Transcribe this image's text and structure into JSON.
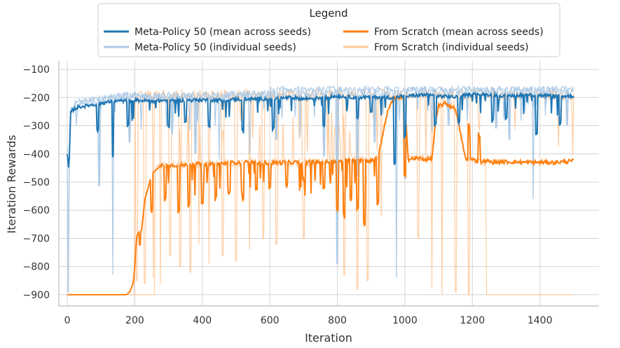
{
  "chart_data": {
    "type": "line",
    "title": "",
    "xlabel": "Iteration",
    "ylabel": "Iteration Rewards",
    "xlim": [
      -25,
      1575
    ],
    "ylim": [
      -940,
      -70
    ],
    "xticks": [
      0,
      200,
      400,
      600,
      800,
      1000,
      1200,
      1400
    ],
    "yticks": [
      -900,
      -800,
      -700,
      -600,
      -500,
      -400,
      -300,
      -200,
      -100
    ],
    "grid": true,
    "legend": {
      "title": "Legend",
      "placement": "top-center",
      "entries": [
        "Meta-Policy 50 (mean across seeds)",
        "From Scratch (mean across seeds)",
        "Meta-Policy 50 (individual seeds)",
        "From Scratch (individual seeds)"
      ]
    },
    "colors": {
      "meta": "#1f77b4",
      "meta_light": "#aac8e3",
      "scratch": "#ff7f0e",
      "scratch_light": "#ffc898",
      "grid": "#d4d4d4",
      "axis": "#bbbbbb"
    },
    "series": [
      {
        "name": "Meta-Policy 50 (mean across seeds)",
        "x": [
          0,
          5,
          10,
          30,
          60,
          80,
          100,
          130,
          160,
          200,
          260,
          300,
          350,
          400,
          460,
          500,
          560,
          600,
          660,
          700,
          760,
          800,
          860,
          900,
          960,
          1000,
          1060,
          1100,
          1150,
          1200,
          1260,
          1300,
          1350,
          1400,
          1450,
          1500
        ],
        "y": [
          -400,
          -460,
          -250,
          -235,
          -228,
          -225,
          -220,
          -215,
          -212,
          -210,
          -212,
          -210,
          -210,
          -208,
          -210,
          -206,
          -205,
          -205,
          -200,
          -205,
          -200,
          -195,
          -200,
          -198,
          -200,
          -195,
          -190,
          -195,
          -198,
          -188,
          -190,
          -195,
          -190,
          -192,
          -195,
          -195
        ],
        "dips": [
          [
            90,
            -320
          ],
          [
            135,
            -410
          ],
          [
            180,
            -300
          ],
          [
            300,
            -300
          ],
          [
            350,
            -280
          ],
          [
            420,
            -300
          ],
          [
            520,
            -320
          ],
          [
            610,
            -310
          ],
          [
            760,
            -300
          ],
          [
            860,
            -270
          ],
          [
            900,
            -250
          ],
          [
            970,
            -430
          ],
          [
            1000,
            -340
          ],
          [
            1090,
            -300
          ],
          [
            1160,
            -290
          ],
          [
            1260,
            -280
          ],
          [
            1300,
            -270
          ],
          [
            1390,
            -330
          ],
          [
            1460,
            -290
          ]
        ]
      },
      {
        "name": "From Scratch (mean across seeds)",
        "x": [
          0,
          50,
          100,
          150,
          175,
          185,
          195,
          200,
          205,
          210,
          220,
          230,
          240,
          250,
          260,
          270,
          280,
          300,
          350,
          400,
          450,
          500,
          550,
          600,
          650,
          700,
          750,
          800,
          850,
          900,
          920,
          950,
          970,
          1000,
          1010,
          1040,
          1060,
          1080,
          1090,
          1100,
          1120,
          1150,
          1180,
          1200,
          1220,
          1240,
          1260,
          1300,
          1350,
          1400,
          1450,
          1500
        ],
        "y": [
          -900,
          -900,
          -900,
          -900,
          -900,
          -890,
          -860,
          -800,
          -700,
          -680,
          -670,
          -560,
          -520,
          -470,
          -460,
          -450,
          -440,
          -440,
          -440,
          -435,
          -435,
          -430,
          -430,
          -432,
          -430,
          -430,
          -428,
          -428,
          -420,
          -425,
          -415,
          -240,
          -200,
          -200,
          -420,
          -415,
          -420,
          -418,
          -300,
          -230,
          -220,
          -240,
          -420,
          -420,
          -430,
          -425,
          -430,
          -428,
          -430,
          -430,
          -430,
          -425
        ],
        "dips": [
          [
            215,
            -720
          ],
          [
            250,
            -600
          ],
          [
            290,
            -560
          ],
          [
            330,
            -600
          ],
          [
            360,
            -580
          ],
          [
            400,
            -580
          ],
          [
            440,
            -560
          ],
          [
            480,
            -540
          ],
          [
            520,
            -560
          ],
          [
            560,
            -520
          ],
          [
            600,
            -520
          ],
          [
            650,
            -510
          ],
          [
            700,
            -490
          ],
          [
            760,
            -520
          ],
          [
            800,
            -600
          ],
          [
            820,
            -620
          ],
          [
            840,
            -560
          ],
          [
            860,
            -600
          ],
          [
            880,
            -650
          ],
          [
            920,
            -580
          ],
          [
            1000,
            -480
          ],
          [
            1190,
            -300
          ],
          [
            1220,
            -330
          ]
        ]
      },
      {
        "name": "Meta-Policy 50 (individual seeds)",
        "base": -200,
        "spikes": [
          [
            2,
            -890
          ],
          [
            95,
            -515
          ],
          [
            135,
            -830
          ],
          [
            185,
            -360
          ],
          [
            310,
            -330
          ],
          [
            380,
            -400
          ],
          [
            450,
            -420
          ],
          [
            540,
            -400
          ],
          [
            620,
            -350
          ],
          [
            690,
            -340
          ],
          [
            760,
            -410
          ],
          [
            800,
            -790
          ],
          [
            860,
            -480
          ],
          [
            910,
            -360
          ],
          [
            975,
            -840
          ],
          [
            1000,
            -490
          ],
          [
            1080,
            -320
          ],
          [
            1130,
            -300
          ],
          [
            1270,
            -310
          ],
          [
            1310,
            -350
          ],
          [
            1380,
            -560
          ],
          [
            1480,
            -300
          ]
        ]
      },
      {
        "name": "From Scratch (individual seeds)",
        "base": -180,
        "floor": -900,
        "spikes": [
          [
            205,
            -850
          ],
          [
            230,
            -860
          ],
          [
            255,
            -840
          ],
          [
            275,
            -860
          ],
          [
            305,
            -760
          ],
          [
            335,
            -800
          ],
          [
            365,
            -820
          ],
          [
            390,
            -720
          ],
          [
            420,
            -790
          ],
          [
            460,
            -760
          ],
          [
            500,
            -780
          ],
          [
            540,
            -740
          ],
          [
            580,
            -700
          ],
          [
            620,
            -720
          ],
          [
            660,
            -720
          ],
          [
            700,
            -700
          ],
          [
            740,
            -680
          ],
          [
            780,
            -690
          ],
          [
            820,
            -830
          ],
          [
            860,
            -880
          ],
          [
            890,
            -850
          ],
          [
            930,
            -620
          ],
          [
            1040,
            -700
          ],
          [
            1080,
            -880
          ],
          [
            1110,
            -900
          ],
          [
            1150,
            -890
          ],
          [
            1190,
            -900
          ],
          [
            1230,
            -880
          ]
        ]
      }
    ]
  }
}
